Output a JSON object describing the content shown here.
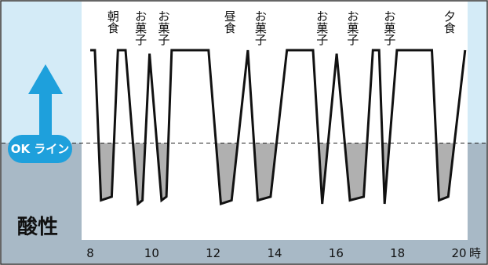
{
  "chart_data": {
    "type": "line",
    "title": "",
    "xlabel": "",
    "ylabel": "",
    "x_unit": "時",
    "xlim": [
      8,
      20.3
    ],
    "ylim": [
      0,
      1
    ],
    "x_ticks": [
      "8",
      "10",
      "12",
      "14",
      "16",
      "18",
      "20"
    ],
    "threshold": {
      "label": "OK ライン",
      "value": 0.41
    },
    "acid_zone_label": "酸性",
    "colors": {
      "safe_zone": "#d4ebf7",
      "acid_zone": "#a8b9c6",
      "line": "#111111",
      "fill_below": "#b0b0b0",
      "arrow": "#1ea0dc"
    },
    "events": [
      {
        "time": 8.75,
        "label": "朝食"
      },
      {
        "time": 9.65,
        "label": "お菓子"
      },
      {
        "time": 10.4,
        "label": "お菓子"
      },
      {
        "time": 12.55,
        "label": "昼食"
      },
      {
        "time": 13.55,
        "label": "お菓子"
      },
      {
        "time": 15.55,
        "label": "お菓子"
      },
      {
        "time": 16.55,
        "label": "お菓子"
      },
      {
        "time": 17.75,
        "label": "お菓子"
      },
      {
        "time": 19.7,
        "label": "夕食"
      }
    ],
    "series": [
      {
        "x": [
          8.0,
          8.15,
          8.35,
          8.7,
          8.9,
          9.15,
          9.55,
          9.7,
          9.93,
          10.32,
          10.48,
          10.65,
          11.18,
          11.85,
          12.25,
          12.6,
          13.13,
          13.45,
          13.87,
          14.4,
          15.25,
          15.55,
          16.02,
          16.45,
          16.9,
          17.2,
          17.4,
          17.58,
          17.98,
          18.52,
          19.12,
          19.35,
          19.65,
          20.2
        ],
        "y": [
          0.93,
          0.93,
          0.09,
          0.11,
          0.93,
          0.93,
          0.07,
          0.09,
          0.91,
          0.09,
          0.11,
          0.93,
          0.93,
          0.93,
          0.07,
          0.09,
          0.93,
          0.09,
          0.11,
          0.93,
          0.93,
          0.07,
          0.91,
          0.09,
          0.11,
          0.93,
          0.93,
          0.07,
          0.93,
          0.93,
          0.93,
          0.09,
          0.11,
          0.93
        ]
      }
    ]
  }
}
